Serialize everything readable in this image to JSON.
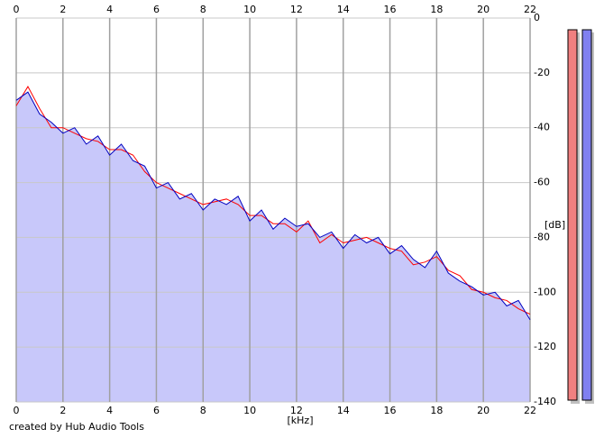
{
  "chart_data": {
    "type": "line",
    "xlabel": "[kHz]",
    "ylabel": "[dB]",
    "credit": "created by Hub Audio Tools",
    "x": [
      0,
      0.5,
      1,
      1.5,
      2,
      2.5,
      3,
      3.5,
      4,
      4.5,
      5,
      5.5,
      6,
      6.5,
      7,
      7.5,
      8,
      8.5,
      9,
      9.5,
      10,
      10.5,
      11,
      11.5,
      12,
      12.5,
      13,
      13.5,
      14,
      14.5,
      15,
      15.5,
      16,
      16.5,
      17,
      17.5,
      18,
      18.5,
      19,
      19.5,
      20,
      20.5,
      21,
      21.5,
      22
    ],
    "series": [
      {
        "color": "#ff0000",
        "values": [
          -32,
          -25,
          -33,
          -40,
          -40,
          -42,
          -44,
          -45,
          -48,
          -48,
          -50,
          -56,
          -60,
          -62,
          -64,
          -66,
          -68,
          -67,
          -66,
          -68,
          -72,
          -72,
          -75,
          -75,
          -78,
          -74,
          -82,
          -79,
          -82,
          -81,
          -80,
          -82,
          -84,
          -85,
          -90,
          -89,
          -87,
          -92,
          -94,
          -99,
          -100,
          -102,
          -103,
          -106,
          -108
        ]
      },
      {
        "color": "#0000c0",
        "fill": "#c8c8fa",
        "values": [
          -30,
          -27,
          -35,
          -38,
          -42,
          -40,
          -46,
          -43,
          -50,
          -46,
          -52,
          -54,
          -62,
          -60,
          -66,
          -64,
          -70,
          -66,
          -68,
          -65,
          -74,
          -70,
          -77,
          -73,
          -76,
          -75,
          -80,
          -78,
          -84,
          -79,
          -82,
          -80,
          -86,
          -83,
          -88,
          -91,
          -85,
          -93,
          -96,
          -98,
          -101,
          -100,
          -105,
          -103,
          -110
        ]
      }
    ],
    "xlim": [
      0,
      22
    ],
    "xticks": [
      0,
      2,
      4,
      6,
      8,
      10,
      12,
      14,
      16,
      18,
      20,
      22
    ],
    "ylim": [
      -140,
      0
    ],
    "yticks": [
      0,
      -20,
      -40,
      -60,
      -80,
      -100,
      -120,
      -140
    ],
    "grid": true
  }
}
